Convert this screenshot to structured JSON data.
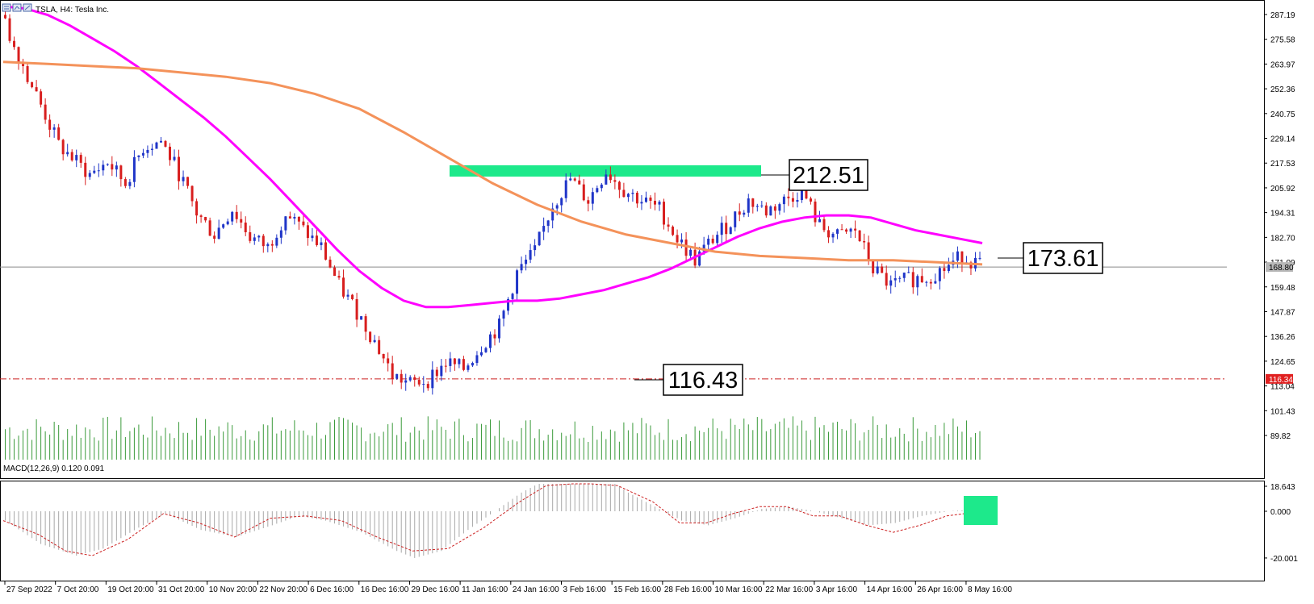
{
  "header": {
    "symbol_label": "TSLA, H4:  Tesla Inc.",
    "icons": [
      "chart-window-icon",
      "chart-window-icon",
      "chart-window-icon"
    ]
  },
  "chart_data": {
    "type": "candlestick",
    "symbol": "TSLA",
    "timeframe": "H4",
    "instrument_name": "Tesla Inc.",
    "y_ticks": [
      287.19,
      275.58,
      263.97,
      252.36,
      240.75,
      229.14,
      217.53,
      205.92,
      194.31,
      182.7,
      171.09,
      159.48,
      147.87,
      136.26,
      124.65,
      113.04,
      101.43,
      89.82
    ],
    "y_tick_labels": [
      "287.19",
      "275.58",
      "263.97",
      "252.36",
      "240.75",
      "229.14",
      "217.53",
      "205.92",
      "194.31",
      "182.70",
      "171.09",
      "159.48",
      "147.87",
      "136.26",
      "124.65",
      "113.04",
      "101.43",
      "89.82"
    ],
    "x_tick_labels": [
      "27 Sep 2022",
      "7 Oct 20:00",
      "19 Oct 20:00",
      "31 Oct 20:00",
      "10 Nov 20:00",
      "22 Nov 20:00",
      "6 Dec 16:00",
      "16 Dec 16:00",
      "29 Dec 16:00",
      "11 Jan 16:00",
      "24 Jan 16:00",
      "3 Feb 16:00",
      "15 Feb 16:00",
      "28 Feb 16:00",
      "10 Mar 16:00",
      "22 Mar 16:00",
      "3 Apr 16:00",
      "14 Apr 16:00",
      "26 Apr 16:00",
      "8 May 16:00"
    ],
    "current_price": 168.8,
    "current_price_label": "168.80",
    "support_line": 116.34,
    "support_line_label": "116.34",
    "resistance_zone": [
      211.2,
      216.5
    ],
    "annotations": [
      {
        "label": "212.51",
        "value": 212.51
      },
      {
        "label": "173.61",
        "value": 173.61
      },
      {
        "label": "116.43",
        "value": 116.43
      }
    ],
    "moving_averages": [
      {
        "color": "#ff00ff",
        "points": [
          [
            0,
            291
          ],
          [
            5,
            290
          ],
          [
            10,
            287
          ],
          [
            15,
            282
          ],
          [
            20,
            276
          ],
          [
            25,
            270
          ],
          [
            30,
            263
          ],
          [
            35,
            255
          ],
          [
            40,
            247
          ],
          [
            45,
            239
          ],
          [
            50,
            230
          ],
          [
            55,
            220
          ],
          [
            60,
            210
          ],
          [
            65,
            199
          ],
          [
            70,
            188
          ],
          [
            75,
            177
          ],
          [
            80,
            167
          ],
          [
            85,
            159
          ],
          [
            90,
            153
          ],
          [
            95,
            150
          ],
          [
            100,
            150
          ],
          [
            105,
            151
          ],
          [
            110,
            152
          ],
          [
            115,
            153
          ],
          [
            120,
            153
          ],
          [
            125,
            154
          ],
          [
            130,
            156
          ],
          [
            135,
            158
          ],
          [
            140,
            161
          ],
          [
            145,
            164
          ],
          [
            150,
            168
          ],
          [
            155,
            173
          ],
          [
            160,
            178
          ],
          [
            165,
            183
          ],
          [
            170,
            187
          ],
          [
            175,
            190
          ],
          [
            180,
            192
          ],
          [
            185,
            193
          ],
          [
            190,
            193
          ],
          [
            195,
            192
          ],
          [
            200,
            189
          ],
          [
            205,
            186
          ],
          [
            210,
            184
          ],
          [
            215,
            182
          ],
          [
            220,
            180
          ]
        ]
      },
      {
        "color": "#f4925a",
        "points": [
          [
            0,
            265
          ],
          [
            10,
            264
          ],
          [
            20,
            263
          ],
          [
            30,
            262
          ],
          [
            40,
            260
          ],
          [
            50,
            258
          ],
          [
            60,
            255
          ],
          [
            70,
            250
          ],
          [
            80,
            243
          ],
          [
            90,
            232
          ],
          [
            100,
            220
          ],
          [
            110,
            208
          ],
          [
            120,
            198
          ],
          [
            130,
            190
          ],
          [
            140,
            184
          ],
          [
            150,
            180
          ],
          [
            160,
            176
          ],
          [
            170,
            174
          ],
          [
            180,
            173
          ],
          [
            190,
            172
          ],
          [
            200,
            172
          ],
          [
            210,
            171
          ],
          [
            220,
            170
          ]
        ]
      }
    ],
    "macd": {
      "label": "MACD(12,26,9) 0.120 0.091",
      "y_ticks": [
        18.643,
        0.0,
        -20.001
      ],
      "y_tick_labels": [
        "18.643",
        "0.000",
        "-20.001"
      ],
      "histogram_profile": [
        [
          0,
          -4
        ],
        [
          8,
          -14
        ],
        [
          16,
          -19
        ],
        [
          22,
          -16
        ],
        [
          30,
          -7
        ],
        [
          36,
          -1
        ],
        [
          44,
          -8
        ],
        [
          52,
          -11
        ],
        [
          60,
          -6
        ],
        [
          66,
          -2
        ],
        [
          72,
          -4
        ],
        [
          80,
          -9
        ],
        [
          88,
          -17
        ],
        [
          92,
          -20
        ],
        [
          98,
          -17
        ],
        [
          104,
          -8
        ],
        [
          110,
          0
        ],
        [
          116,
          8
        ],
        [
          122,
          14
        ],
        [
          128,
          18
        ],
        [
          134,
          16
        ],
        [
          140,
          8
        ],
        [
          146,
          2
        ],
        [
          152,
          -4
        ],
        [
          158,
          -6
        ],
        [
          164,
          -3
        ],
        [
          170,
          1
        ],
        [
          176,
          2
        ],
        [
          182,
          0
        ],
        [
          188,
          -3
        ],
        [
          194,
          -6
        ],
        [
          200,
          -5
        ],
        [
          206,
          -2
        ],
        [
          212,
          0
        ],
        [
          220,
          1
        ]
      ],
      "signal_profile": [
        [
          0,
          -4
        ],
        [
          8,
          -10
        ],
        [
          14,
          -17
        ],
        [
          20,
          -19
        ],
        [
          28,
          -12
        ],
        [
          36,
          -1
        ],
        [
          44,
          -5
        ],
        [
          52,
          -11
        ],
        [
          60,
          -3
        ],
        [
          68,
          -2
        ],
        [
          76,
          -4
        ],
        [
          84,
          -11
        ],
        [
          92,
          -17
        ],
        [
          100,
          -16
        ],
        [
          108,
          -7
        ],
        [
          116,
          4
        ],
        [
          122,
          11
        ],
        [
          128,
          17
        ],
        [
          132,
          17
        ],
        [
          138,
          11
        ],
        [
          146,
          4
        ],
        [
          152,
          -5
        ],
        [
          158,
          -5
        ],
        [
          164,
          -1
        ],
        [
          170,
          2
        ],
        [
          176,
          2
        ],
        [
          182,
          -2
        ],
        [
          188,
          -2
        ],
        [
          194,
          -6
        ],
        [
          200,
          -9
        ],
        [
          206,
          -6
        ],
        [
          212,
          -2
        ],
        [
          220,
          0
        ]
      ]
    },
    "macd_marker_value": 0.0,
    "grid": false,
    "legend": "none"
  }
}
